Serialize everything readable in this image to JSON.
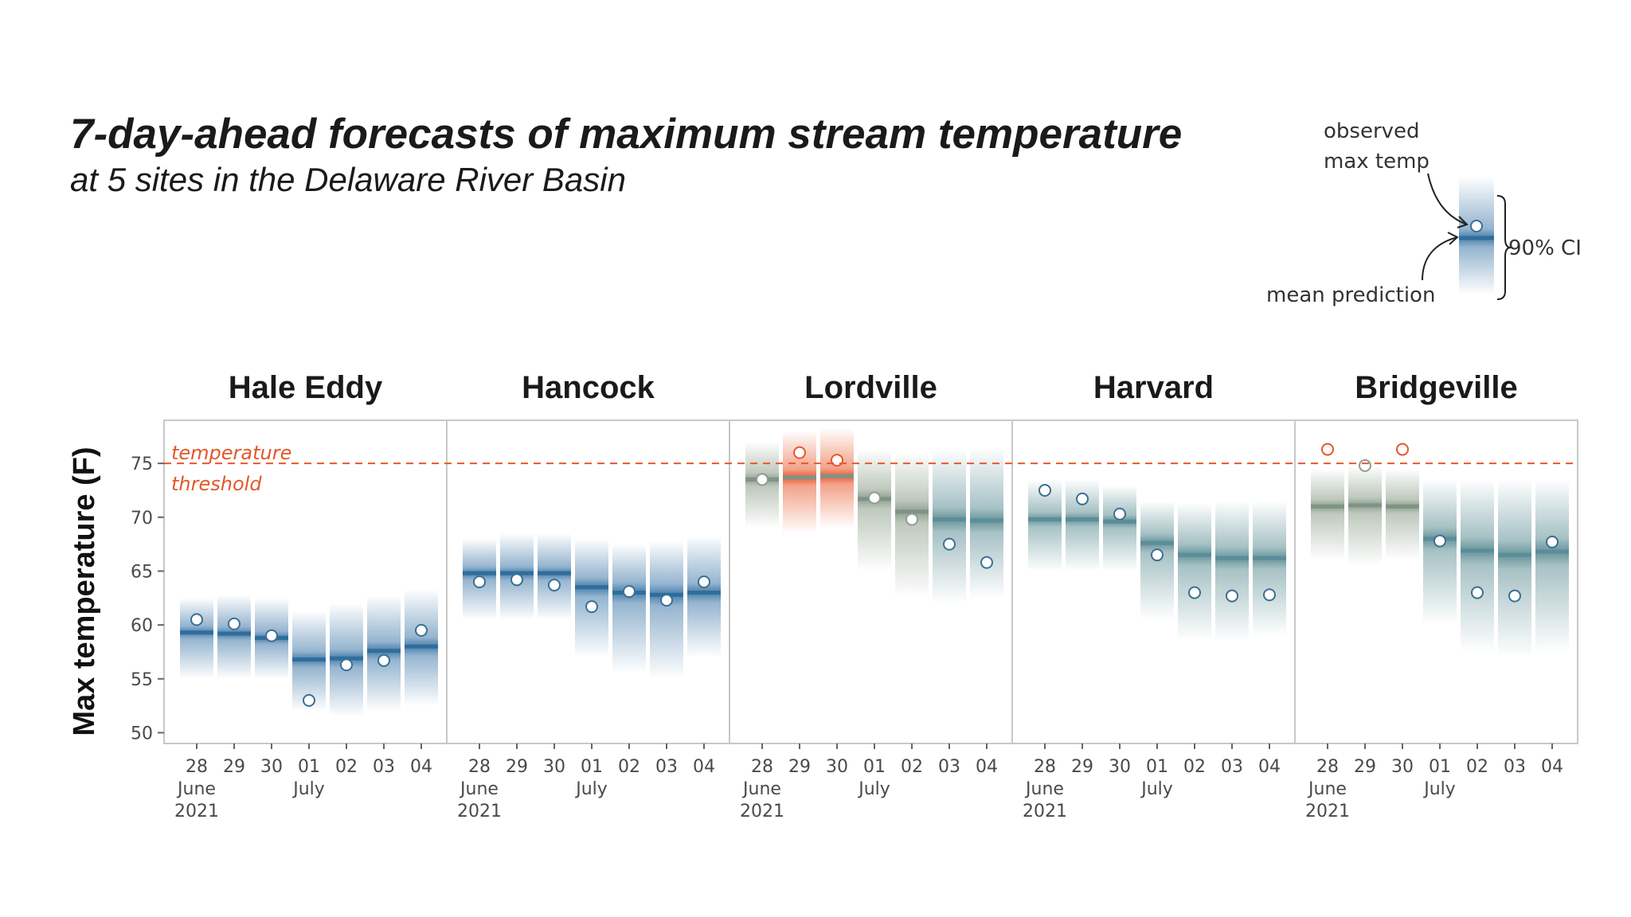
{
  "title": "7-day-ahead forecasts of maximum stream temperature",
  "subtitle": "at 5 sites in the Delaware River Basin",
  "legend": {
    "observed_label_line1": "observed",
    "observed_label_line2": "max temp",
    "mean_label": "mean prediction",
    "ci_label": "90% CI"
  },
  "colors": {
    "blue": "#3f78a8",
    "mean_blue": "#2f6e9c",
    "teal": "#5f8f95",
    "orange": "#e8572a",
    "gray_band": "#8a9c88",
    "threshold": "#e8572a",
    "frame": "#c8c8c8"
  },
  "chart_data": {
    "type": "interval",
    "ylabel": "Max temperature (F)",
    "ylim": [
      49,
      79
    ],
    "yticks": [
      50,
      55,
      60,
      65,
      70,
      75
    ],
    "threshold": {
      "value": 75,
      "label_line1": "temperature",
      "label_line2": "threshold"
    },
    "x": [
      "28",
      "29",
      "30",
      "01",
      "02",
      "03",
      "04"
    ],
    "x_month_labels": [
      {
        "at": 0,
        "text": "June"
      },
      {
        "at": 3,
        "text": "July"
      }
    ],
    "x_year_label": {
      "at": 0,
      "text": "2021"
    },
    "ci": "90%",
    "sites": [
      {
        "name": "Hale Eddy",
        "mean": [
          59.3,
          59.2,
          58.8,
          56.8,
          56.9,
          57.6,
          58.0
        ],
        "observed": [
          60.5,
          60.1,
          59.0,
          53.0,
          56.3,
          56.7,
          59.5
        ],
        "ci_low": [
          55.0,
          55.0,
          55.0,
          52.0,
          51.5,
          52.0,
          52.5
        ],
        "ci_high": [
          62.5,
          62.8,
          62.5,
          61.3,
          62.0,
          62.8,
          63.3
        ]
      },
      {
        "name": "Hancock",
        "mean": [
          64.8,
          64.8,
          64.8,
          63.5,
          63.0,
          62.8,
          63.0
        ],
        "observed": [
          64.0,
          64.2,
          63.7,
          61.7,
          63.1,
          62.3,
          64.0
        ],
        "ci_low": [
          60.5,
          60.5,
          60.5,
          57.0,
          55.5,
          55.0,
          57.0
        ],
        "ci_high": [
          68.0,
          68.5,
          68.5,
          68.0,
          67.5,
          67.8,
          68.3
        ]
      },
      {
        "name": "Lordville",
        "mean": [
          73.5,
          73.7,
          73.8,
          71.7,
          70.5,
          69.8,
          69.7
        ],
        "observed": [
          73.5,
          76.0,
          75.3,
          71.8,
          69.8,
          67.5,
          65.8
        ],
        "ci_low": [
          69.0,
          68.5,
          69.0,
          65.0,
          62.5,
          62.0,
          62.5
        ],
        "ci_high": [
          77.0,
          78.0,
          78.3,
          76.3,
          76.0,
          76.3,
          76.5
        ]
      },
      {
        "name": "Harvard",
        "mean": [
          69.8,
          69.8,
          69.6,
          67.6,
          66.5,
          66.2,
          66.2
        ],
        "observed": [
          72.5,
          71.7,
          70.3,
          66.5,
          63.0,
          62.7,
          62.8
        ],
        "ci_low": [
          65.0,
          65.0,
          65.0,
          60.5,
          58.5,
          58.5,
          59.0
        ],
        "ci_high": [
          73.5,
          73.5,
          73.0,
          71.5,
          71.3,
          71.5,
          71.5
        ]
      },
      {
        "name": "Bridgeville",
        "mean": [
          71.0,
          71.1,
          71.0,
          68.0,
          66.9,
          66.5,
          66.8
        ],
        "observed": [
          76.3,
          74.8,
          76.3,
          67.8,
          63.0,
          62.7,
          67.7
        ],
        "ci_low": [
          66.0,
          65.5,
          66.0,
          60.0,
          57.5,
          57.0,
          57.5
        ],
        "ci_high": [
          74.5,
          74.8,
          74.5,
          73.5,
          73.5,
          73.5,
          73.5
        ]
      }
    ]
  }
}
